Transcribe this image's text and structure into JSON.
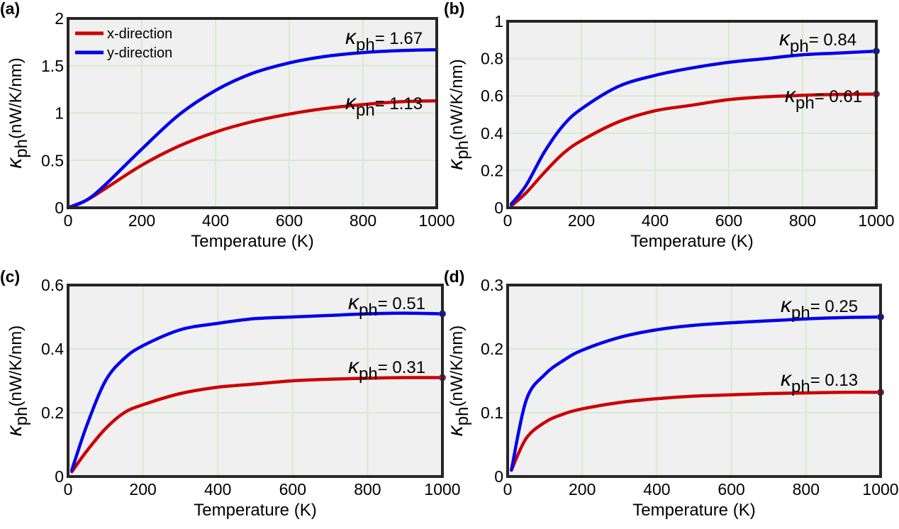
{
  "colors": {
    "x_direction": "#cc0000",
    "y_direction": "#0000ee"
  },
  "chart_data": [
    {
      "type": "line",
      "panel_label": "(a)",
      "xlabel": "Temperature (K)",
      "ylabel_symbol": "κ",
      "ylabel_subscript": "ph",
      "ylabel_units": "(nW/K/nm)",
      "xlim": [
        0,
        1000
      ],
      "ylim": [
        0,
        2
      ],
      "xticks": [
        0,
        200,
        400,
        600,
        800,
        1000
      ],
      "xtick_labels": [
        "0",
        "200",
        "400",
        "600",
        "800",
        "1000"
      ],
      "yticks": [
        0,
        0.5,
        1,
        1.5,
        2
      ],
      "ytick_labels": [
        "0",
        "0.5",
        "1",
        "1.5",
        "2"
      ],
      "grid": true,
      "legend": {
        "position": "top-left",
        "entries": [
          "x-direction",
          "y-direction"
        ]
      },
      "series": [
        {
          "name": "x-direction",
          "color": "#cc0000",
          "x": [
            0,
            50,
            100,
            200,
            300,
            400,
            500,
            600,
            700,
            800,
            900,
            1000
          ],
          "y": [
            0,
            0.08,
            0.2,
            0.45,
            0.65,
            0.8,
            0.91,
            0.99,
            1.05,
            1.09,
            1.12,
            1.13
          ],
          "endpoint_marker": false,
          "annotation": {
            "symbol": "κ",
            "sub": "ph",
            "text": "= 1.13"
          }
        },
        {
          "name": "y-direction",
          "color": "#0000ee",
          "x": [
            0,
            50,
            100,
            200,
            300,
            400,
            500,
            600,
            700,
            800,
            900,
            1000
          ],
          "y": [
            0,
            0.08,
            0.24,
            0.62,
            0.98,
            1.24,
            1.42,
            1.53,
            1.6,
            1.64,
            1.66,
            1.67
          ],
          "endpoint_marker": false,
          "annotation": {
            "symbol": "κ",
            "sub": "ph",
            "text": "= 1.67"
          }
        }
      ]
    },
    {
      "type": "line",
      "panel_label": "(b)",
      "xlabel": "Temperature (K)",
      "ylabel_symbol": "κ",
      "ylabel_subscript": "ph",
      "ylabel_units": "(nW/K/nm)",
      "xlim": [
        0,
        1000
      ],
      "ylim": [
        0,
        1
      ],
      "xticks": [
        0,
        200,
        400,
        600,
        800,
        1000
      ],
      "xtick_labels": [
        "0",
        "200",
        "400",
        "600",
        "800",
        "1000"
      ],
      "yticks": [
        0,
        0.2,
        0.4,
        0.6,
        0.8,
        1
      ],
      "ytick_labels": [
        "0",
        "0.2",
        "0.4",
        "0.6",
        "0.8",
        "1"
      ],
      "grid": true,
      "series": [
        {
          "name": "x-direction",
          "color": "#cc0000",
          "x": [
            10,
            50,
            100,
            150,
            200,
            300,
            400,
            500,
            600,
            700,
            800,
            900,
            1000
          ],
          "y": [
            0.01,
            0.08,
            0.19,
            0.29,
            0.36,
            0.46,
            0.52,
            0.55,
            0.58,
            0.595,
            0.603,
            0.608,
            0.61
          ],
          "endpoint_marker": true,
          "annotation": {
            "symbol": "κ",
            "sub": "ph",
            "text": "= 0.61"
          }
        },
        {
          "name": "y-direction",
          "color": "#0000ee",
          "x": [
            10,
            50,
            100,
            150,
            200,
            300,
            400,
            500,
            600,
            700,
            800,
            900,
            1000
          ],
          "y": [
            0.02,
            0.12,
            0.3,
            0.44,
            0.53,
            0.65,
            0.71,
            0.75,
            0.78,
            0.8,
            0.82,
            0.83,
            0.84
          ],
          "endpoint_marker": true,
          "annotation": {
            "symbol": "κ",
            "sub": "ph",
            "text": "= 0.84"
          }
        }
      ]
    },
    {
      "type": "line",
      "panel_label": "(c)",
      "xlabel": "Temperature (K)",
      "ylabel_symbol": "κ",
      "ylabel_subscript": "ph",
      "ylabel_units": "(nW/K/nm)",
      "xlim": [
        0,
        1000
      ],
      "ylim": [
        0,
        0.6
      ],
      "xticks": [
        0,
        200,
        400,
        600,
        800,
        1000
      ],
      "xtick_labels": [
        "0",
        "200",
        "400",
        "600",
        "800",
        "1000"
      ],
      "yticks": [
        0,
        0.2,
        0.4,
        0.6
      ],
      "ytick_labels": [
        "0",
        "0.2",
        "0.4",
        "0.6"
      ],
      "grid": true,
      "series": [
        {
          "name": "x-direction",
          "color": "#cc0000",
          "x": [
            10,
            50,
            100,
            150,
            200,
            300,
            400,
            500,
            600,
            700,
            800,
            900,
            1000
          ],
          "y": [
            0.015,
            0.08,
            0.15,
            0.2,
            0.225,
            0.26,
            0.28,
            0.29,
            0.3,
            0.305,
            0.308,
            0.31,
            0.31
          ],
          "endpoint_marker": true,
          "annotation": {
            "symbol": "κ",
            "sub": "ph",
            "text": "= 0.31"
          }
        },
        {
          "name": "y-direction",
          "color": "#0000ee",
          "x": [
            10,
            50,
            100,
            150,
            200,
            300,
            400,
            500,
            600,
            700,
            800,
            900,
            1000
          ],
          "y": [
            0.02,
            0.16,
            0.3,
            0.37,
            0.41,
            0.46,
            0.48,
            0.495,
            0.5,
            0.505,
            0.51,
            0.512,
            0.51
          ],
          "endpoint_marker": true,
          "annotation": {
            "symbol": "κ",
            "sub": "ph",
            "text": "= 0.51"
          }
        }
      ]
    },
    {
      "type": "line",
      "panel_label": "(d)",
      "xlabel": "Temperature (K)",
      "ylabel_symbol": "κ",
      "ylabel_subscript": "ph",
      "ylabel_units": "(nW/K/nm)",
      "xlim": [
        0,
        1000
      ],
      "ylim": [
        0,
        0.3
      ],
      "xticks": [
        0,
        200,
        400,
        600,
        800,
        1000
      ],
      "xtick_labels": [
        "0",
        "200",
        "400",
        "600",
        "800",
        "1000"
      ],
      "yticks": [
        0,
        0.1,
        0.2,
        0.3
      ],
      "ytick_labels": [
        "0",
        "0.1",
        "0.2",
        "0.3"
      ],
      "grid": true,
      "series": [
        {
          "name": "x-direction",
          "color": "#cc0000",
          "x": [
            10,
            50,
            100,
            150,
            200,
            300,
            400,
            500,
            600,
            700,
            800,
            900,
            1000
          ],
          "y": [
            0.01,
            0.06,
            0.085,
            0.098,
            0.106,
            0.116,
            0.122,
            0.126,
            0.128,
            0.13,
            0.131,
            0.132,
            0.132
          ],
          "endpoint_marker": true,
          "annotation": {
            "symbol": "κ",
            "sub": "ph",
            "text": "= 0.13"
          }
        },
        {
          "name": "y-direction",
          "color": "#0000ee",
          "x": [
            10,
            50,
            100,
            150,
            200,
            300,
            400,
            500,
            600,
            700,
            800,
            900,
            1000
          ],
          "y": [
            0.01,
            0.12,
            0.16,
            0.182,
            0.198,
            0.218,
            0.23,
            0.237,
            0.241,
            0.244,
            0.247,
            0.249,
            0.25
          ],
          "endpoint_marker": true,
          "annotation": {
            "symbol": "κ",
            "sub": "ph",
            "text": "= 0.25"
          }
        }
      ]
    }
  ]
}
